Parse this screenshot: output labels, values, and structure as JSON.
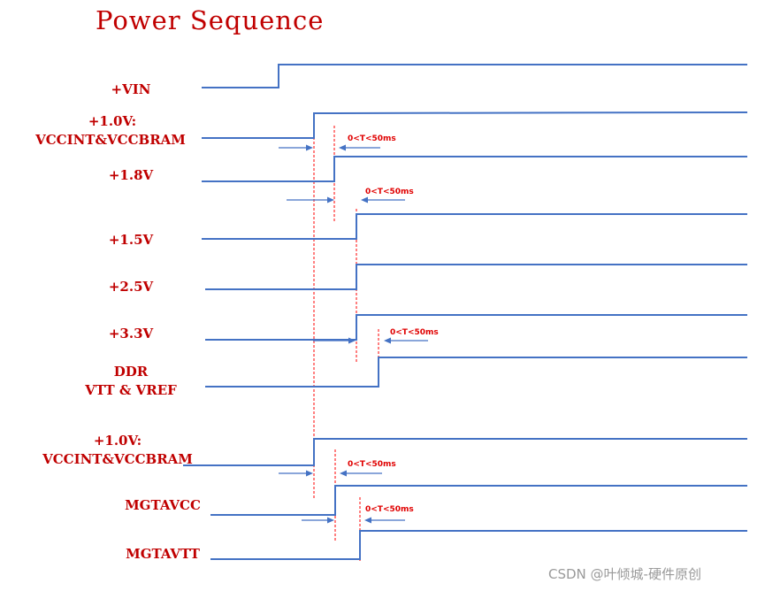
{
  "title": "Power Sequence",
  "signals": [
    {
      "id": "vin",
      "label": [
        "+VIN"
      ]
    },
    {
      "id": "v1_0_a",
      "label": [
        "+1.0V:",
        "VCCINT&VCCBRAM"
      ]
    },
    {
      "id": "v1_8",
      "label": [
        "+1.8V"
      ]
    },
    {
      "id": "v1_5",
      "label": [
        "+1.5V"
      ]
    },
    {
      "id": "v2_5",
      "label": [
        "+2.5V"
      ]
    },
    {
      "id": "v3_3",
      "label": [
        "+3.3V"
      ]
    },
    {
      "id": "ddr",
      "label": [
        "DDR",
        "VTT & VREF"
      ]
    },
    {
      "id": "v1_0_b",
      "label": [
        "+1.0V:",
        "VCCINT&VCCBRAM"
      ]
    },
    {
      "id": "mgtavcc",
      "label": [
        "MGTAVCC"
      ]
    },
    {
      "id": "mgtavtt",
      "label": [
        "MGTAVTT"
      ]
    }
  ],
  "timing_labels": [
    "0<T<50ms",
    "0<T<50ms",
    "0<T<50ms",
    "0<T<50ms",
    "0<T<50ms"
  ],
  "watermark": "CSDN @叶倾城-硬件原创",
  "colors": {
    "waveform": "#4472c4",
    "label": "#c00000",
    "guide": "#ff0000"
  }
}
